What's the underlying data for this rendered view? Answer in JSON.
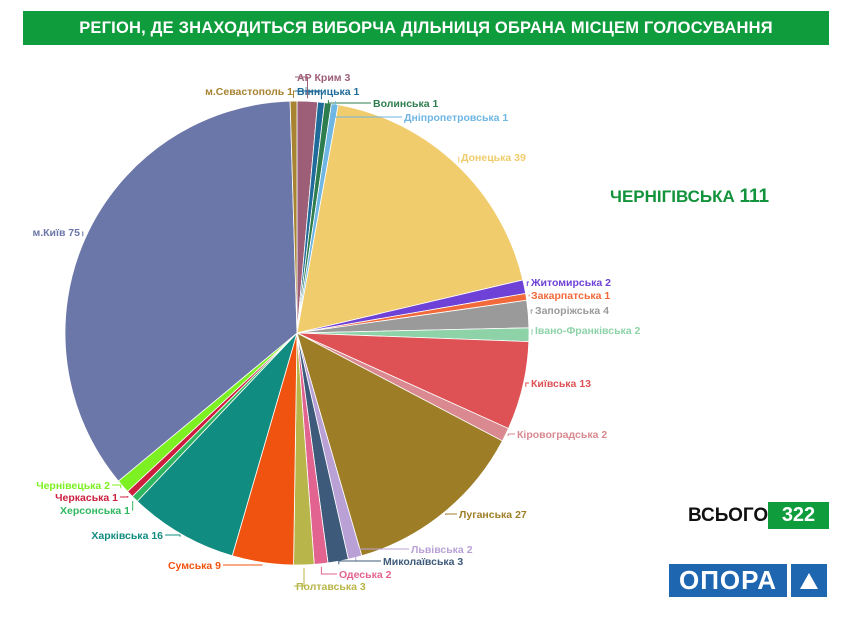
{
  "title": "РЕГІОН, ДЕ ЗНАХОДИТЬСЯ ВИБОРЧА ДІЛЬНИЦЯ ОБРАНА МІСЦЕМ ГОЛОСУВАННЯ",
  "highlight": {
    "label": "ЧЕРНІГІВСЬКА",
    "value": "111"
  },
  "total": {
    "label": "ВСЬОГО",
    "value": "322"
  },
  "logo": {
    "text": "ОПОРА"
  },
  "colors": {
    "accent": "#0f9c3c",
    "logo": "#1f66b1"
  },
  "chart_data": {
    "type": "pie",
    "title": "",
    "slices": [
      {
        "label": "АР Крим 3",
        "value": 3,
        "color": "#9d5f78"
      },
      {
        "label": "Вінницька 1",
        "value": 1,
        "color": "#1f6b99"
      },
      {
        "label": "Волинська 1",
        "value": 1,
        "color": "#2e7d4f"
      },
      {
        "label": "Дніпропетровська 1",
        "value": 1,
        "color": "#6fb6e3"
      },
      {
        "label": "Донецька 39",
        "value": 39,
        "color": "#f0cc6c"
      },
      {
        "label": "Житомирська 2",
        "value": 2,
        "color": "#6e42d6"
      },
      {
        "label": "Закарпатська 1",
        "value": 1,
        "color": "#f26a3b"
      },
      {
        "label": "Запоріжська 4",
        "value": 4,
        "color": "#9a9a9a"
      },
      {
        "label": "Івано-Франківська 2",
        "value": 2,
        "color": "#8ed2a8"
      },
      {
        "label": "Київська 13",
        "value": 13,
        "color": "#de5256"
      },
      {
        "label": "Кіровоградська 2",
        "value": 2,
        "color": "#d9898f"
      },
      {
        "label": "Луганська 27",
        "value": 27,
        "color": "#9e7d27"
      },
      {
        "label": "Львівська 2",
        "value": 2,
        "color": "#b9a1d6"
      },
      {
        "label": "Миколаївська 3",
        "value": 3,
        "color": "#3d5a7a"
      },
      {
        "label": "Одеська 2",
        "value": 2,
        "color": "#e2638f"
      },
      {
        "label": "Полтавська 3",
        "value": 3,
        "color": "#b8b64a"
      },
      {
        "label": "Сумська 9",
        "value": 9,
        "color": "#f0530f"
      },
      {
        "label": "Харківська 16",
        "value": 16,
        "color": "#118c80"
      },
      {
        "label": "Херсонська 1",
        "value": 1,
        "color": "#30b860"
      },
      {
        "label": "Черкаська 1",
        "value": 1,
        "color": "#cc1f3d"
      },
      {
        "label": "Чернівецька 2",
        "value": 2,
        "color": "#7cf021"
      },
      {
        "label": "м.Київ 75",
        "value": 75,
        "color": "#6b77a8"
      },
      {
        "label": "м.Севастополь 1",
        "value": 1,
        "color": "#a78332"
      }
    ]
  }
}
